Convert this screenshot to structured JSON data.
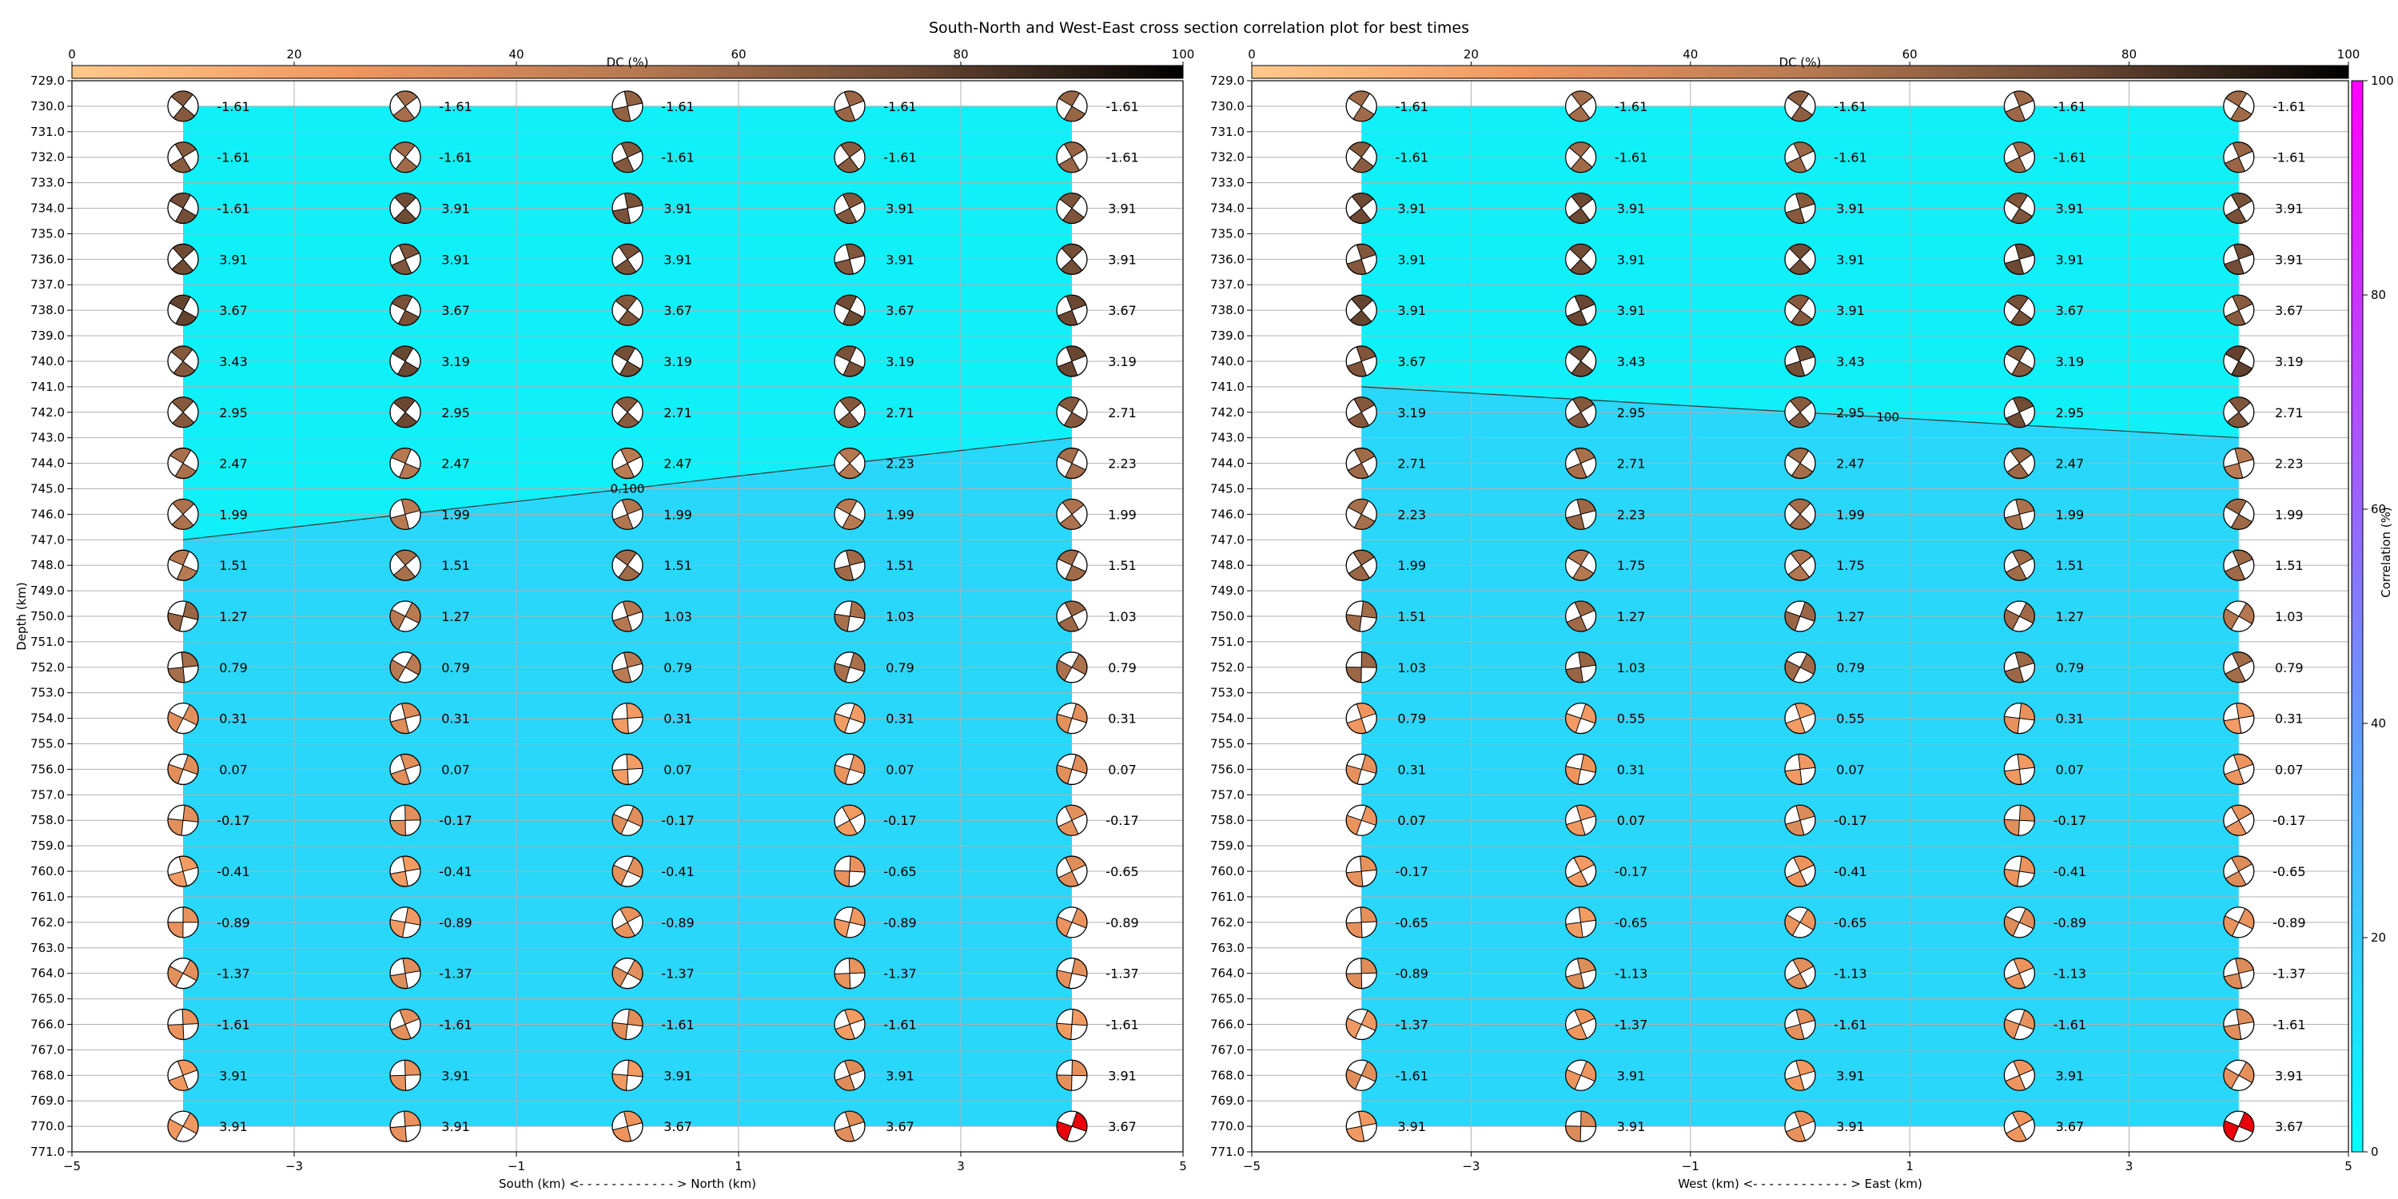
{
  "title": "South-North and West-East cross section correlation plot for best times",
  "chart_data": [
    {
      "type": "heatmap",
      "panel": "south-north",
      "xlabel": "South (km) <- - - - - - - - - - - - > North (km)",
      "ylabel": "Depth (km)",
      "xlim": [
        -5,
        5
      ],
      "ylim": [
        771,
        729
      ],
      "x_ticks": [
        -5,
        -3,
        -1,
        1,
        3,
        5
      ],
      "y_ticks": [
        729,
        730,
        731,
        732,
        733,
        734,
        735,
        736,
        737,
        738,
        739,
        740,
        741,
        742,
        743,
        744,
        745,
        746,
        747,
        748,
        749,
        750,
        751,
        752,
        753,
        754,
        755,
        756,
        757,
        758,
        759,
        760,
        761,
        762,
        763,
        764,
        765,
        766,
        767,
        768,
        769,
        770,
        771
      ],
      "grid": true,
      "x": [
        -4,
        -2,
        0,
        2,
        4
      ],
      "depths": [
        730,
        732,
        734,
        736,
        738,
        740,
        742,
        744,
        746,
        748,
        750,
        752,
        754,
        756,
        758,
        760,
        762,
        764,
        766,
        768,
        770
      ],
      "time_labels": [
        [
          "-1.61",
          "-1.61",
          "-1.61",
          "-1.61",
          "-1.61"
        ],
        [
          "-1.61",
          "-1.61",
          "-1.61",
          "-1.61",
          "-1.61"
        ],
        [
          "-1.61",
          "3.91",
          "3.91",
          "3.91",
          "3.91"
        ],
        [
          "3.91",
          "3.91",
          "3.91",
          "3.91",
          "3.91"
        ],
        [
          "3.67",
          "3.67",
          "3.67",
          "3.67",
          "3.67"
        ],
        [
          "3.43",
          "3.19",
          "3.19",
          "3.19",
          "3.19"
        ],
        [
          "2.95",
          "2.95",
          "2.71",
          "2.71",
          "2.71"
        ],
        [
          "2.47",
          "2.47",
          "2.47",
          "2.23",
          "2.23"
        ],
        [
          "1.99",
          "1.99",
          "1.99",
          "1.99",
          "1.99"
        ],
        [
          "1.51",
          "1.51",
          "1.51",
          "1.51",
          "1.51"
        ],
        [
          "1.27",
          "1.27",
          "1.03",
          "1.03",
          "1.03"
        ],
        [
          "0.79",
          "0.79",
          "0.79",
          "0.79",
          "0.79"
        ],
        [
          "0.31",
          "0.31",
          "0.31",
          "0.31",
          "0.31"
        ],
        [
          "0.07",
          "0.07",
          "0.07",
          "0.07",
          "0.07"
        ],
        [
          "-0.17",
          "-0.17",
          "-0.17",
          "-0.17",
          "-0.17"
        ],
        [
          "-0.41",
          "-0.41",
          "-0.41",
          "-0.65",
          "-0.65"
        ],
        [
          "-0.89",
          "-0.89",
          "-0.89",
          "-0.89",
          "-0.89"
        ],
        [
          "-1.37",
          "-1.37",
          "-1.37",
          "-1.37",
          "-1.37"
        ],
        [
          "-1.61",
          "-1.61",
          "-1.61",
          "-1.61",
          "-1.61"
        ],
        [
          "3.91",
          "3.91",
          "3.91",
          "3.91",
          "3.91"
        ],
        [
          "3.91",
          "3.91",
          "3.67",
          "3.67",
          "3.67"
        ]
      ],
      "contour_label": "0.100",
      "contour_line": [
        [
          -4,
          747.0
        ],
        [
          4,
          743.0
        ]
      ],
      "contour_upper_color": "#0ff0f8",
      "contour_lower_color": "#28d7fa",
      "contour_extent": [
        -4,
        4,
        730,
        770
      ],
      "red_beachball": [
        4,
        770
      ]
    },
    {
      "type": "heatmap",
      "panel": "west-east",
      "xlabel": "West (km) <- - - - - - - - - - - - > East (km)",
      "ylabel": "",
      "xlim": [
        -5,
        5
      ],
      "ylim": [
        771,
        729
      ],
      "x_ticks": [
        -5,
        -3,
        -1,
        1,
        3,
        5
      ],
      "y_ticks": [
        729,
        730,
        731,
        732,
        733,
        734,
        735,
        736,
        737,
        738,
        739,
        740,
        741,
        742,
        743,
        744,
        745,
        746,
        747,
        748,
        749,
        750,
        751,
        752,
        753,
        754,
        755,
        756,
        757,
        758,
        759,
        760,
        761,
        762,
        763,
        764,
        765,
        766,
        767,
        768,
        769,
        770,
        771
      ],
      "grid": true,
      "x": [
        -4,
        -2,
        0,
        2,
        4
      ],
      "depths": [
        730,
        732,
        734,
        736,
        738,
        740,
        742,
        744,
        746,
        748,
        750,
        752,
        754,
        756,
        758,
        760,
        762,
        764,
        766,
        768,
        770
      ],
      "time_labels": [
        [
          "-1.61",
          "-1.61",
          "-1.61",
          "-1.61",
          "-1.61"
        ],
        [
          "-1.61",
          "-1.61",
          "-1.61",
          "-1.61",
          "-1.61"
        ],
        [
          "3.91",
          "3.91",
          "3.91",
          "3.91",
          "3.91"
        ],
        [
          "3.91",
          "3.91",
          "3.91",
          "3.91",
          "3.91"
        ],
        [
          "3.91",
          "3.91",
          "3.91",
          "3.67",
          "3.67"
        ],
        [
          "3.67",
          "3.43",
          "3.43",
          "3.19",
          "3.19"
        ],
        [
          "3.19",
          "2.95",
          "2.95",
          "2.95",
          "2.71"
        ],
        [
          "2.71",
          "2.71",
          "2.47",
          "2.47",
          "2.23"
        ],
        [
          "2.23",
          "2.23",
          "1.99",
          "1.99",
          "1.99"
        ],
        [
          "1.99",
          "1.75",
          "1.75",
          "1.51",
          "1.51"
        ],
        [
          "1.51",
          "1.27",
          "1.27",
          "1.27",
          "1.03"
        ],
        [
          "1.03",
          "1.03",
          "0.79",
          "0.79",
          "0.79"
        ],
        [
          "0.79",
          "0.55",
          "0.55",
          "0.31",
          "0.31"
        ],
        [
          "0.31",
          "0.31",
          "0.07",
          "0.07",
          "0.07"
        ],
        [
          "0.07",
          "0.07",
          "-0.17",
          "-0.17",
          "-0.17"
        ],
        [
          "-0.17",
          "-0.17",
          "-0.41",
          "-0.41",
          "-0.65"
        ],
        [
          "-0.65",
          "-0.65",
          "-0.65",
          "-0.89",
          "-0.89"
        ],
        [
          "-0.89",
          "-1.13",
          "-1.13",
          "-1.13",
          "-1.37"
        ],
        [
          "-1.37",
          "-1.37",
          "-1.61",
          "-1.61",
          "-1.61"
        ],
        [
          "-1.61",
          "3.91",
          "3.91",
          "3.91",
          "3.91"
        ],
        [
          "3.91",
          "3.91",
          "3.91",
          "3.67",
          "3.67"
        ]
      ],
      "contour_label": "100",
      "contour_line": [
        [
          -4,
          741.0
        ],
        [
          4,
          743.0
        ]
      ],
      "contour_upper_color": "#0ff0f8",
      "contour_lower_color": "#28d7fa",
      "contour_extent": [
        -4,
        4,
        730,
        770
      ],
      "red_beachball": [
        4,
        770
      ]
    }
  ],
  "dc_colorbar": {
    "label": "DC (%)",
    "ticks": [
      0,
      20,
      40,
      60,
      80,
      100
    ],
    "colors": [
      "#ffc98a",
      "#f0965f",
      "#b97a52",
      "#6e4a34",
      "#000000"
    ]
  },
  "correlation_colorbar": {
    "label": "Correlation (%)",
    "ticks": [
      0,
      20,
      40,
      60,
      80,
      100
    ],
    "colors": [
      "#00ffff",
      "#7f7fff",
      "#ff00ff"
    ]
  },
  "beachball_colors": {
    "edge": "#000000",
    "blank": "#ffffff",
    "red": "#e8000b"
  }
}
